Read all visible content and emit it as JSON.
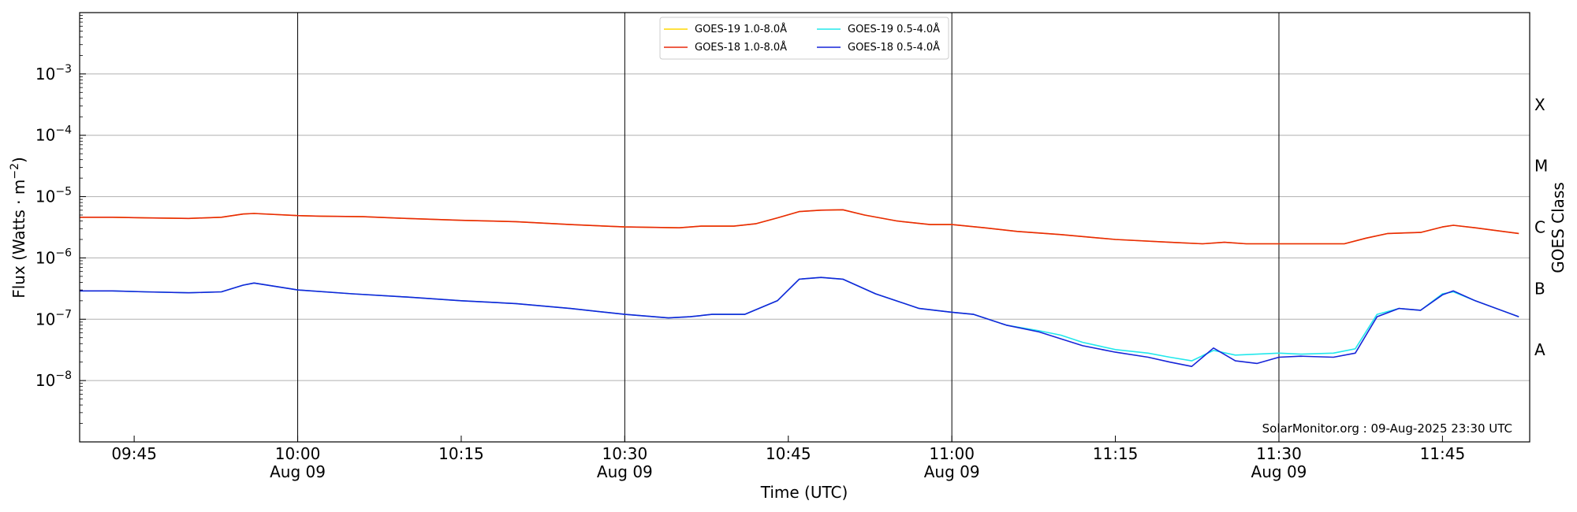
{
  "chart_data": {
    "type": "line",
    "title": "",
    "xlabel": "Time (UTC)",
    "ylabel_prefix": "Flux (Watts · m",
    "ylabel_exponent": "−2",
    "ylabel_suffix": ")",
    "y2label": "GOES Class",
    "y_scale": "log",
    "ylim": [
      1e-09,
      0.01
    ],
    "xlim": [
      "09:40",
      "11:53"
    ],
    "x_ticks": [
      {
        "time": "09:45",
        "label": "09:45",
        "date": ""
      },
      {
        "time": "10:00",
        "label": "10:00",
        "date": "Aug 09"
      },
      {
        "time": "10:15",
        "label": "10:15",
        "date": ""
      },
      {
        "time": "10:30",
        "label": "10:30",
        "date": "Aug 09"
      },
      {
        "time": "10:45",
        "label": "10:45",
        "date": ""
      },
      {
        "time": "11:00",
        "label": "11:00",
        "date": "Aug 09"
      },
      {
        "time": "11:15",
        "label": "11:15",
        "date": ""
      },
      {
        "time": "11:30",
        "label": "11:30",
        "date": "Aug 09"
      },
      {
        "time": "11:45",
        "label": "11:45",
        "date": ""
      }
    ],
    "y_ticks": [
      {
        "value": 1e-08,
        "base": "10",
        "exp": "−8"
      },
      {
        "value": 1e-07,
        "base": "10",
        "exp": "−7"
      },
      {
        "value": 1e-06,
        "base": "10",
        "exp": "−6"
      },
      {
        "value": 1e-05,
        "base": "10",
        "exp": "−5"
      },
      {
        "value": 0.0001,
        "base": "10",
        "exp": "−4"
      },
      {
        "value": 0.001,
        "base": "10",
        "exp": "−3"
      }
    ],
    "class_labels": [
      {
        "label": "A",
        "value": 3.16e-08
      },
      {
        "label": "B",
        "value": 3.16e-07
      },
      {
        "label": "C",
        "value": 3.16e-06
      },
      {
        "label": "M",
        "value": 3.16e-05
      },
      {
        "label": "X",
        "value": 0.000316
      }
    ],
    "vertical_lines": [
      "10:00",
      "10:30",
      "11:00",
      "11:30"
    ],
    "horizontal_grid": true,
    "legend_position": "top-center",
    "credit": "SolarMonitor.org : 09-Aug-2025 23:30 UTC",
    "series": [
      {
        "name": "GOES-19 1.0-8.0Å",
        "color": "#ffd700",
        "x": [
          "09:40",
          "09:43",
          "09:46",
          "09:50",
          "09:53",
          "09:55",
          "09:56",
          "10:00",
          "10:02",
          "10:06",
          "10:10",
          "10:15",
          "10:20",
          "10:25",
          "10:30",
          "10:35",
          "10:37",
          "10:40",
          "10:42",
          "10:44",
          "10:46",
          "10:48",
          "10:50",
          "10:52",
          "10:55",
          "10:58",
          "11:00",
          "11:03",
          "11:06",
          "11:10",
          "11:15",
          "11:20",
          "11:23",
          "11:25",
          "11:27",
          "11:30",
          "11:33",
          "11:36",
          "11:38",
          "11:40",
          "11:43",
          "11:45",
          "11:46",
          "11:48",
          "11:52"
        ],
        "y": [
          4.6e-06,
          4.6e-06,
          4.5e-06,
          4.4e-06,
          4.6e-06,
          5.2e-06,
          5.3e-06,
          4.9e-06,
          4.8e-06,
          4.7e-06,
          4.4e-06,
          4.1e-06,
          3.9e-06,
          3.5e-06,
          3.2e-06,
          3.1e-06,
          3.3e-06,
          3.3e-06,
          3.6e-06,
          4.5e-06,
          5.7e-06,
          6e-06,
          6.1e-06,
          5e-06,
          4e-06,
          3.5e-06,
          3.5e-06,
          3.1e-06,
          2.7e-06,
          2.4e-06,
          2e-06,
          1.8e-06,
          1.7e-06,
          1.8e-06,
          1.7e-06,
          1.7e-06,
          1.7e-06,
          1.7e-06,
          2.1e-06,
          2.5e-06,
          2.6e-06,
          3.2e-06,
          3.4e-06,
          3.1e-06,
          2.5e-06
        ]
      },
      {
        "name": "GOES-18 1.0-8.0Å",
        "color": "#e8280c",
        "x": [
          "09:40",
          "09:43",
          "09:46",
          "09:50",
          "09:53",
          "09:55",
          "09:56",
          "10:00",
          "10:02",
          "10:06",
          "10:10",
          "10:15",
          "10:20",
          "10:25",
          "10:30",
          "10:35",
          "10:37",
          "10:40",
          "10:42",
          "10:44",
          "10:46",
          "10:48",
          "10:50",
          "10:52",
          "10:55",
          "10:58",
          "11:00",
          "11:03",
          "11:06",
          "11:10",
          "11:15",
          "11:20",
          "11:23",
          "11:25",
          "11:27",
          "11:30",
          "11:33",
          "11:36",
          "11:38",
          "11:40",
          "11:43",
          "11:45",
          "11:46",
          "11:48",
          "11:52"
        ],
        "y": [
          4.6e-06,
          4.6e-06,
          4.5e-06,
          4.4e-06,
          4.6e-06,
          5.2e-06,
          5.3e-06,
          4.9e-06,
          4.8e-06,
          4.7e-06,
          4.4e-06,
          4.1e-06,
          3.9e-06,
          3.5e-06,
          3.2e-06,
          3.1e-06,
          3.3e-06,
          3.3e-06,
          3.6e-06,
          4.5e-06,
          5.7e-06,
          6e-06,
          6.1e-06,
          5e-06,
          4e-06,
          3.5e-06,
          3.5e-06,
          3.1e-06,
          2.7e-06,
          2.4e-06,
          2e-06,
          1.8e-06,
          1.7e-06,
          1.8e-06,
          1.7e-06,
          1.7e-06,
          1.7e-06,
          1.7e-06,
          2.1e-06,
          2.5e-06,
          2.6e-06,
          3.2e-06,
          3.4e-06,
          3.1e-06,
          2.5e-06
        ]
      },
      {
        "name": "GOES-19 0.5-4.0Å",
        "color": "#22e8ec",
        "x": [
          "09:40",
          "09:43",
          "09:46",
          "09:50",
          "09:53",
          "09:55",
          "09:56",
          "10:00",
          "10:05",
          "10:10",
          "10:15",
          "10:20",
          "10:25",
          "10:30",
          "10:34",
          "10:36",
          "10:38",
          "10:41",
          "10:44",
          "10:46",
          "10:48",
          "10:50",
          "10:53",
          "10:57",
          "11:00",
          "11:02",
          "11:05",
          "11:08",
          "11:10",
          "11:12",
          "11:15",
          "11:18",
          "11:20",
          "11:22",
          "11:24",
          "11:26",
          "11:28",
          "11:30",
          "11:32",
          "11:35",
          "11:37",
          "11:39",
          "11:41",
          "11:43",
          "11:45",
          "11:46",
          "11:48",
          "11:52"
        ],
        "y": [
          2.9e-07,
          2.9e-07,
          2.8e-07,
          2.7e-07,
          2.8e-07,
          3.6e-07,
          3.9e-07,
          3e-07,
          2.6e-07,
          2.3e-07,
          2e-07,
          1.8e-07,
          1.5e-07,
          1.2e-07,
          1.05e-07,
          1.1e-07,
          1.2e-07,
          1.2e-07,
          2e-07,
          4.5e-07,
          4.8e-07,
          4.5e-07,
          2.6e-07,
          1.5e-07,
          1.3e-07,
          1.2e-07,
          8e-08,
          6.5e-08,
          5.5e-08,
          4.2e-08,
          3.2e-08,
          2.8e-08,
          2.4e-08,
          2.1e-08,
          3.1e-08,
          2.6e-08,
          2.7e-08,
          2.8e-08,
          2.7e-08,
          2.8e-08,
          3.3e-08,
          1.2e-07,
          1.5e-07,
          1.4e-07,
          2.6e-07,
          2.8e-07,
          2e-07,
          1.1e-07
        ]
      },
      {
        "name": "GOES-18 0.5-4.0Å",
        "color": "#1624d8",
        "x": [
          "09:40",
          "09:43",
          "09:46",
          "09:50",
          "09:53",
          "09:55",
          "09:56",
          "10:00",
          "10:05",
          "10:10",
          "10:15",
          "10:20",
          "10:25",
          "10:30",
          "10:34",
          "10:36",
          "10:38",
          "10:41",
          "10:44",
          "10:46",
          "10:48",
          "10:50",
          "10:53",
          "10:57",
          "11:00",
          "11:02",
          "11:05",
          "11:08",
          "11:10",
          "11:12",
          "11:15",
          "11:18",
          "11:20",
          "11:22",
          "11:24",
          "11:26",
          "11:28",
          "11:30",
          "11:32",
          "11:35",
          "11:37",
          "11:39",
          "11:41",
          "11:43",
          "11:45",
          "11:46",
          "11:48",
          "11:52"
        ],
        "y": [
          2.9e-07,
          2.9e-07,
          2.8e-07,
          2.7e-07,
          2.8e-07,
          3.6e-07,
          3.9e-07,
          3e-07,
          2.6e-07,
          2.3e-07,
          2e-07,
          1.8e-07,
          1.5e-07,
          1.2e-07,
          1.05e-07,
          1.1e-07,
          1.2e-07,
          1.2e-07,
          2e-07,
          4.5e-07,
          4.8e-07,
          4.5e-07,
          2.6e-07,
          1.5e-07,
          1.3e-07,
          1.2e-07,
          8e-08,
          6.2e-08,
          4.8e-08,
          3.7e-08,
          2.9e-08,
          2.4e-08,
          2e-08,
          1.7e-08,
          3.4e-08,
          2.1e-08,
          1.9e-08,
          2.4e-08,
          2.5e-08,
          2.4e-08,
          2.8e-08,
          1.1e-07,
          1.5e-07,
          1.4e-07,
          2.5e-07,
          2.9e-07,
          2e-07,
          1.1e-07
        ]
      }
    ]
  }
}
